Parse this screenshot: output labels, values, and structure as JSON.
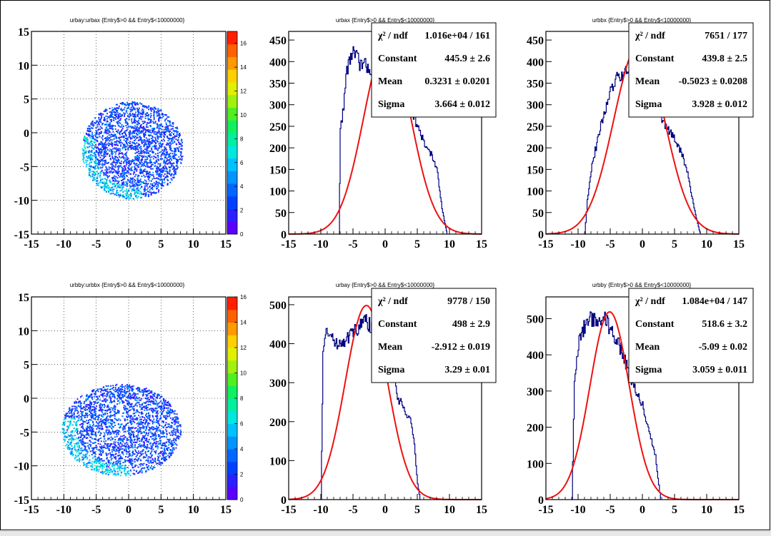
{
  "chart_data": [
    {
      "id": "p1",
      "type": "heatmap",
      "title": "urbay:urbax {Entry$>0 && Entry$<10000000}",
      "xlim": [
        -15,
        15
      ],
      "ylim": [
        -15,
        15
      ],
      "xticks": [
        "-15",
        "-10",
        "-5",
        "0",
        "5",
        "10",
        "15"
      ],
      "yticks": [
        "15",
        "10",
        "5",
        "0",
        "-5",
        "-10",
        "-15"
      ],
      "zlim": [
        0,
        17
      ],
      "zticks": [
        "0",
        "2",
        "4",
        "6",
        "8",
        "10",
        "12",
        "14",
        "16"
      ],
      "blob": {
        "cx": 0.5,
        "cy": -2.5,
        "rx": 7.8,
        "ry": 7.2
      },
      "hole": {
        "cx": 0.3,
        "cy": -3.2,
        "r": 0.6
      }
    },
    {
      "id": "p2",
      "type": "line",
      "title": "urbax {Entry$>0 && Entry$<10000000}",
      "xlim": [
        -15,
        15
      ],
      "ylim": [
        0,
        470
      ],
      "xticks": [
        "-15",
        "-10",
        "-5",
        "0",
        "5",
        "10",
        "15"
      ],
      "yticks": [
        "0",
        "50",
        "100",
        "150",
        "200",
        "250",
        "300",
        "350",
        "400",
        "450"
      ],
      "hist_range": [
        -7.2,
        9.6
      ],
      "plateau": 400,
      "series": [
        {
          "values": [
            [
              -7.2,
              0
            ],
            [
              -7,
              240
            ],
            [
              -6.5,
              300
            ],
            [
              -6,
              380
            ],
            [
              -5.5,
              410
            ],
            [
              -5,
              420
            ],
            [
              -4.5,
              410
            ],
            [
              -4,
              395
            ],
            [
              -3,
              390
            ],
            [
              -2,
              380
            ],
            [
              -1,
              370
            ],
            [
              0,
              360
            ],
            [
              1,
              350
            ],
            [
              2,
              340
            ],
            [
              3,
              320
            ],
            [
              4,
              290
            ],
            [
              5,
              250
            ],
            [
              6,
              210
            ],
            [
              7,
              190
            ],
            [
              8,
              150
            ],
            [
              8.8,
              60
            ],
            [
              9.4,
              15
            ],
            [
              9.6,
              0
            ]
          ]
        }
      ],
      "fit": {
        "constant": 445.9,
        "mean": 0.3231,
        "sigma": 3.664
      },
      "stats": [
        {
          "label": "χ² / ndf",
          "value": "1.016e+04 / 161"
        },
        {
          "label": "Constant",
          "value": "445.9 ± 2.6"
        },
        {
          "label": "Mean",
          "value": "0.3231 ± 0.0201"
        },
        {
          "label": "Sigma",
          "value": "3.664 ± 0.012"
        }
      ]
    },
    {
      "id": "p3",
      "type": "line",
      "title": "urbbx {Entry$>0 && Entry$<10000000}",
      "xlim": [
        -15,
        15
      ],
      "ylim": [
        0,
        470
      ],
      "xticks": [
        "-15",
        "-10",
        "-5",
        "0",
        "5",
        "10",
        "15"
      ],
      "yticks": [
        "0",
        "50",
        "100",
        "150",
        "200",
        "250",
        "300",
        "350",
        "400",
        "450"
      ],
      "series": [
        {
          "values": [
            [
              -9,
              0
            ],
            [
              -8.6,
              80
            ],
            [
              -8,
              150
            ],
            [
              -7,
              220
            ],
            [
              -6,
              280
            ],
            [
              -5,
              330
            ],
            [
              -4,
              360
            ],
            [
              -3,
              370
            ],
            [
              -2,
              380
            ],
            [
              -1,
              370
            ],
            [
              0,
              350
            ],
            [
              1,
              330
            ],
            [
              2,
              300
            ],
            [
              3,
              270
            ],
            [
              4,
              240
            ],
            [
              5,
              220
            ],
            [
              6,
              190
            ],
            [
              7,
              140
            ],
            [
              8,
              60
            ],
            [
              8.8,
              10
            ],
            [
              9,
              0
            ]
          ]
        }
      ],
      "fit": {
        "constant": 439.8,
        "mean": -0.5023,
        "sigma": 3.928
      },
      "stats": [
        {
          "label": "χ² / ndf",
          "value": "7651 / 177"
        },
        {
          "label": "Constant",
          "value": "439.8 ± 2.5"
        },
        {
          "label": "Mean",
          "value": "-0.5023 ± 0.0208"
        },
        {
          "label": "Sigma",
          "value": "3.928 ± 0.012"
        }
      ]
    },
    {
      "id": "p4",
      "type": "heatmap",
      "title": "urbby:urbbx {Entry$>0 && Entry$<10000000}",
      "xlim": [
        -15,
        15
      ],
      "ylim": [
        -15,
        15
      ],
      "xticks": [
        "-15",
        "-10",
        "-5",
        "0",
        "5",
        "10",
        "15"
      ],
      "yticks": [
        "15",
        "10",
        "5",
        "0",
        "-5",
        "-10",
        "-15"
      ],
      "zlim": [
        0,
        16
      ],
      "zticks": [
        "0",
        "2",
        "4",
        "6",
        "8",
        "10",
        "12",
        "14",
        "16"
      ],
      "blob": {
        "cx": -1.2,
        "cy": -4.6,
        "rx": 9.2,
        "ry": 6.8
      },
      "hole": null
    },
    {
      "id": "p5",
      "type": "line",
      "title": "urbay {Entry$>0 && Entry$<10000000}",
      "xlim": [
        -15,
        15
      ],
      "ylim": [
        0,
        520
      ],
      "xticks": [
        "-15",
        "-10",
        "-5",
        "0",
        "5",
        "10",
        "15"
      ],
      "yticks": [
        "0",
        "100",
        "200",
        "300",
        "400",
        "500"
      ],
      "series": [
        {
          "values": [
            [
              -10,
              0
            ],
            [
              -9.7,
              380
            ],
            [
              -9.3,
              420
            ],
            [
              -9,
              440
            ],
            [
              -8,
              400
            ],
            [
              -7,
              405
            ],
            [
              -6,
              415
            ],
            [
              -5,
              430
            ],
            [
              -4,
              445
            ],
            [
              -3,
              460
            ],
            [
              -2,
              440
            ],
            [
              -1,
              400
            ],
            [
              0,
              360
            ],
            [
              1,
              320
            ],
            [
              2,
              260
            ],
            [
              3,
              230
            ],
            [
              4,
              200
            ],
            [
              4.5,
              140
            ],
            [
              5,
              40
            ],
            [
              5.4,
              0
            ]
          ]
        }
      ],
      "fit": {
        "constant": 498,
        "mean": -2.912,
        "sigma": 3.29
      },
      "stats": [
        {
          "label": "χ² / ndf",
          "value": "9778 / 150"
        },
        {
          "label": "Constant",
          "value": "498 ± 2.9"
        },
        {
          "label": "Mean",
          "value": "-2.912 ± 0.019"
        },
        {
          "label": "Sigma",
          "value": "3.29 ± 0.01"
        }
      ]
    },
    {
      "id": "p6",
      "type": "line",
      "title": "urbby {Entry$>0 && Entry$<10000000}",
      "xlim": [
        -15,
        15
      ],
      "ylim": [
        0,
        560
      ],
      "xticks": [
        "-15",
        "-10",
        "-5",
        "0",
        "5",
        "10",
        "15"
      ],
      "yticks": [
        "0",
        "100",
        "200",
        "300",
        "400",
        "500"
      ],
      "series": [
        {
          "values": [
            [
              -11,
              0
            ],
            [
              -10.6,
              320
            ],
            [
              -10,
              430
            ],
            [
              -9,
              480
            ],
            [
              -8,
              500
            ],
            [
              -7,
              495
            ],
            [
              -6,
              505
            ],
            [
              -5,
              470
            ],
            [
              -4,
              440
            ],
            [
              -3,
              400
            ],
            [
              -2,
              340
            ],
            [
              -1,
              300
            ],
            [
              0,
              260
            ],
            [
              1,
              190
            ],
            [
              2,
              120
            ],
            [
              2.5,
              40
            ],
            [
              2.8,
              0
            ]
          ]
        }
      ],
      "fit": {
        "constant": 518.6,
        "mean": -5.09,
        "sigma": 3.059
      },
      "stats": [
        {
          "label": "χ² / ndf",
          "value": "1.084e+04 / 147"
        },
        {
          "label": "Constant",
          "value": "518.6 ± 3.2"
        },
        {
          "label": "Mean",
          "value": "-5.09 ± 0.02"
        },
        {
          "label": "Sigma",
          "value": "3.059 ± 0.011"
        }
      ]
    }
  ],
  "colors": {
    "histogram": "#000080",
    "fit": "#ee1111",
    "frame": "#000000",
    "grid": "#000000",
    "palette": [
      "#5a00ff",
      "#2b20ff",
      "#0041ff",
      "#0067ff",
      "#0094ff",
      "#00c2ff",
      "#00e8e0",
      "#00f0a0",
      "#10f060",
      "#50f020",
      "#a0f010",
      "#e0f000",
      "#ffd000",
      "#ff9a00",
      "#ff6000",
      "#ff2000"
    ]
  }
}
